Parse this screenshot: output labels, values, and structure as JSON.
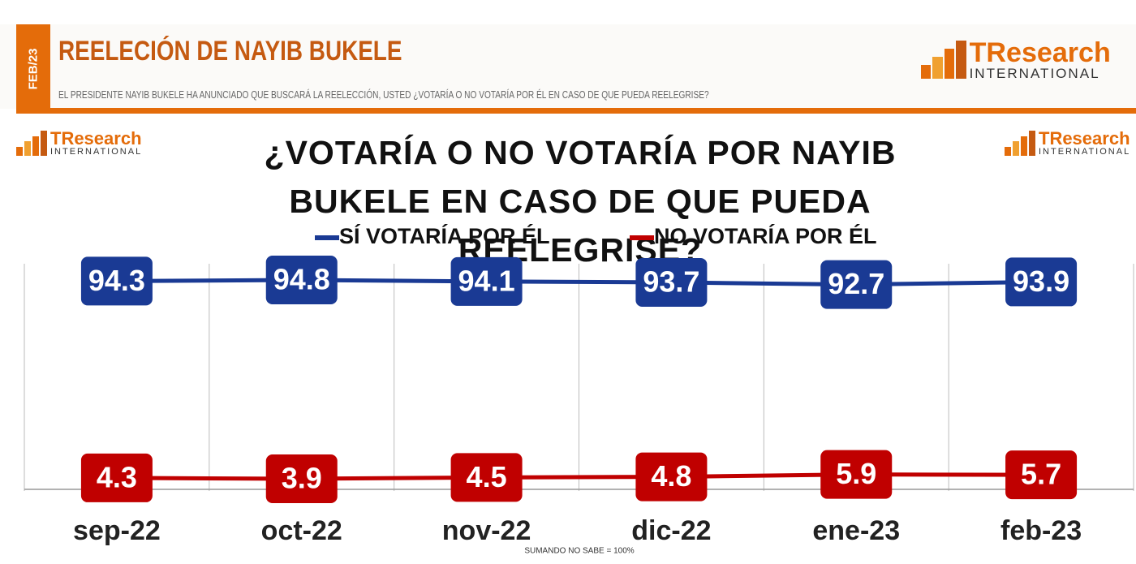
{
  "header": {
    "date_tag": "FEB/23",
    "title": "REELECIÓN DE NAYIB BUKELE",
    "subtitle": "EL PRESIDENTE NAYIB BUKELE HA ANUNCIADO QUE BUSCARÁ LA REELECCIÓN, USTED ¿VOTARÍA O NO VOTARÍA POR ÉL EN CASO DE QUE PUEDA REELEGRISE?",
    "logo_brand": "TResearch",
    "logo_sub": "INTERNATIONAL"
  },
  "chart_data": {
    "type": "line",
    "title": "¿VOTARÍA O NO VOTARÍA POR NAYIB BUKELE EN CASO DE QUE PUEDA REELEGRISE?",
    "categories": [
      "sep-22",
      "oct-22",
      "nov-22",
      "dic-22",
      "ene-23",
      "feb-23"
    ],
    "series": [
      {
        "name": "SÍ VOTARÍA POR ÉL",
        "color": "#1a3a94",
        "values": [
          94.3,
          94.8,
          94.1,
          93.7,
          92.7,
          93.9
        ]
      },
      {
        "name": "NO VOTARÍA POR ÉL",
        "color": "#c00000",
        "values": [
          4.3,
          3.9,
          4.5,
          4.8,
          5.9,
          5.7
        ]
      }
    ],
    "note": "SUMANDO  NO SABE = 100%"
  }
}
